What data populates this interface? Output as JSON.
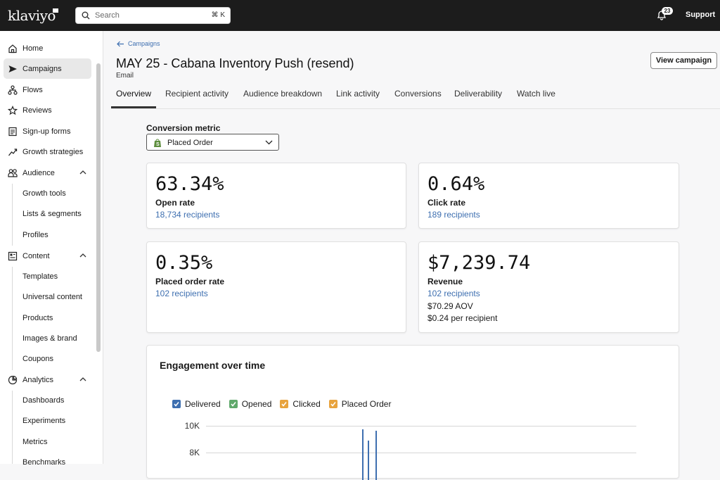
{
  "topbar": {
    "logo": "klaviyo",
    "search_placeholder": "Search",
    "search_shortcut": "⌘ K",
    "notification_count": "23",
    "support_label": "Support"
  },
  "sidebar": {
    "items": [
      {
        "label": "Home",
        "icon": "home-icon"
      },
      {
        "label": "Campaigns",
        "icon": "send-icon",
        "active": true
      },
      {
        "label": "Flows",
        "icon": "flows-icon"
      },
      {
        "label": "Reviews",
        "icon": "star-icon"
      },
      {
        "label": "Sign-up forms",
        "icon": "form-icon"
      },
      {
        "label": "Growth strategies",
        "icon": "trend-icon"
      },
      {
        "label": "Audience",
        "icon": "audience-icon",
        "expanded": true
      },
      {
        "label": "Content",
        "icon": "content-icon",
        "expanded": true
      },
      {
        "label": "Analytics",
        "icon": "analytics-icon",
        "expanded": true
      }
    ],
    "audience_sub": [
      "Growth tools",
      "Lists & segments",
      "Profiles"
    ],
    "content_sub": [
      "Templates",
      "Universal content",
      "Products",
      "Images & brand",
      "Coupons"
    ],
    "analytics_sub": [
      "Dashboards",
      "Experiments",
      "Metrics",
      "Benchmarks"
    ]
  },
  "header": {
    "breadcrumb": "Campaigns",
    "title": "MAY 25 - Cabana Inventory Push (resend)",
    "subtitle": "Email",
    "view_button": "View campaign"
  },
  "tabs": [
    "Overview",
    "Recipient activity",
    "Audience breakdown",
    "Link activity",
    "Conversions",
    "Deliverability",
    "Watch live"
  ],
  "active_tab": "Overview",
  "conversion": {
    "label": "Conversion metric",
    "selected": "Placed Order"
  },
  "cards": {
    "open": {
      "value": "63.34%",
      "label": "Open rate",
      "recipients": "18,734 recipients"
    },
    "click": {
      "value": "0.64%",
      "label": "Click rate",
      "recipients": "189 recipients"
    },
    "placed": {
      "value": "0.35%",
      "label": "Placed order rate",
      "recipients": "102 recipients"
    },
    "revenue": {
      "value": "$7,239.74",
      "label": "Revenue",
      "recipients": "102 recipients",
      "aov": "$70.29 AOV",
      "per_recipient": "$0.24 per recipient"
    }
  },
  "chart": {
    "title": "Engagement over time",
    "legend": [
      {
        "name": "Delivered",
        "color": "#3e6fb0"
      },
      {
        "name": "Opened",
        "color": "#5fa86b"
      },
      {
        "name": "Clicked",
        "color": "#e8a33d"
      },
      {
        "name": "Placed Order",
        "color": "#e8a33d"
      }
    ],
    "yticks": [
      "10K",
      "8K"
    ]
  },
  "chart_data": {
    "type": "line",
    "title": "Engagement over time",
    "series": [
      {
        "name": "Delivered",
        "values": [
          10000,
          9000,
          10000
        ]
      },
      {
        "name": "Opened",
        "values": []
      },
      {
        "name": "Clicked",
        "values": []
      },
      {
        "name": "Placed Order",
        "values": []
      }
    ],
    "yticks": [
      "10K",
      "8K"
    ],
    "grid": true,
    "legend": "top-left"
  },
  "colors": {
    "accent_link": "#3e6fb0",
    "topbar_bg": "#1c1c1c"
  }
}
